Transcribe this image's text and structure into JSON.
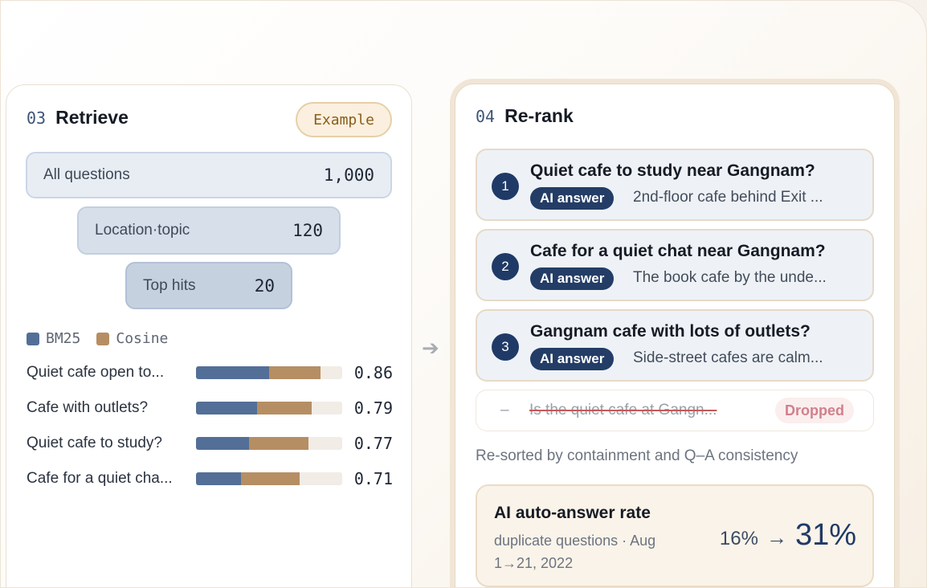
{
  "retrieve": {
    "step_number": "03",
    "title": "Retrieve",
    "badge": "Example",
    "funnel": [
      {
        "label": "All questions",
        "value": "1,000"
      },
      {
        "label": "Location·topic",
        "value": "120"
      },
      {
        "label": "Top hits",
        "value": "20"
      }
    ],
    "legend": [
      {
        "label": "BM25",
        "color": "#536f97"
      },
      {
        "label": "Cosine",
        "color": "#b68e63"
      }
    ],
    "scores": [
      {
        "question": "Quiet cafe open to...",
        "bm25": 0.5,
        "cosine": 0.35,
        "score": "0.86"
      },
      {
        "question": "Cafe with outlets?",
        "bm25": 0.42,
        "cosine": 0.37,
        "score": "0.79"
      },
      {
        "question": "Quiet cafe to study?",
        "bm25": 0.36,
        "cosine": 0.41,
        "score": "0.77"
      },
      {
        "question": "Cafe for a quiet cha...",
        "bm25": 0.31,
        "cosine": 0.4,
        "score": "0.71"
      }
    ]
  },
  "rerank": {
    "step_number": "04",
    "title": "Re-rank",
    "ai_label": "AI answer",
    "results": [
      {
        "rank": "1",
        "question": "Quiet cafe to study near Gangnam?",
        "answer": "2nd-floor cafe behind Exit ..."
      },
      {
        "rank": "2",
        "question": "Cafe for a quiet chat near Gangnam?",
        "answer": "The book cafe by the unde..."
      },
      {
        "rank": "3",
        "question": "Gangnam cafe with lots of outlets?",
        "answer": "Side-street cafes are calm..."
      }
    ],
    "dropped": {
      "dash": "–",
      "question": "Is the quiet cafe at Gangn...",
      "badge": "Dropped"
    },
    "note": "Re-sorted by containment and Q–A consistency",
    "metric": {
      "title": "AI auto-answer rate",
      "subtitle": "duplicate questions · Aug 1→21, 2022",
      "from": "16%",
      "arrow": "→",
      "to": "31%"
    }
  },
  "connector_arrow": "➔"
}
